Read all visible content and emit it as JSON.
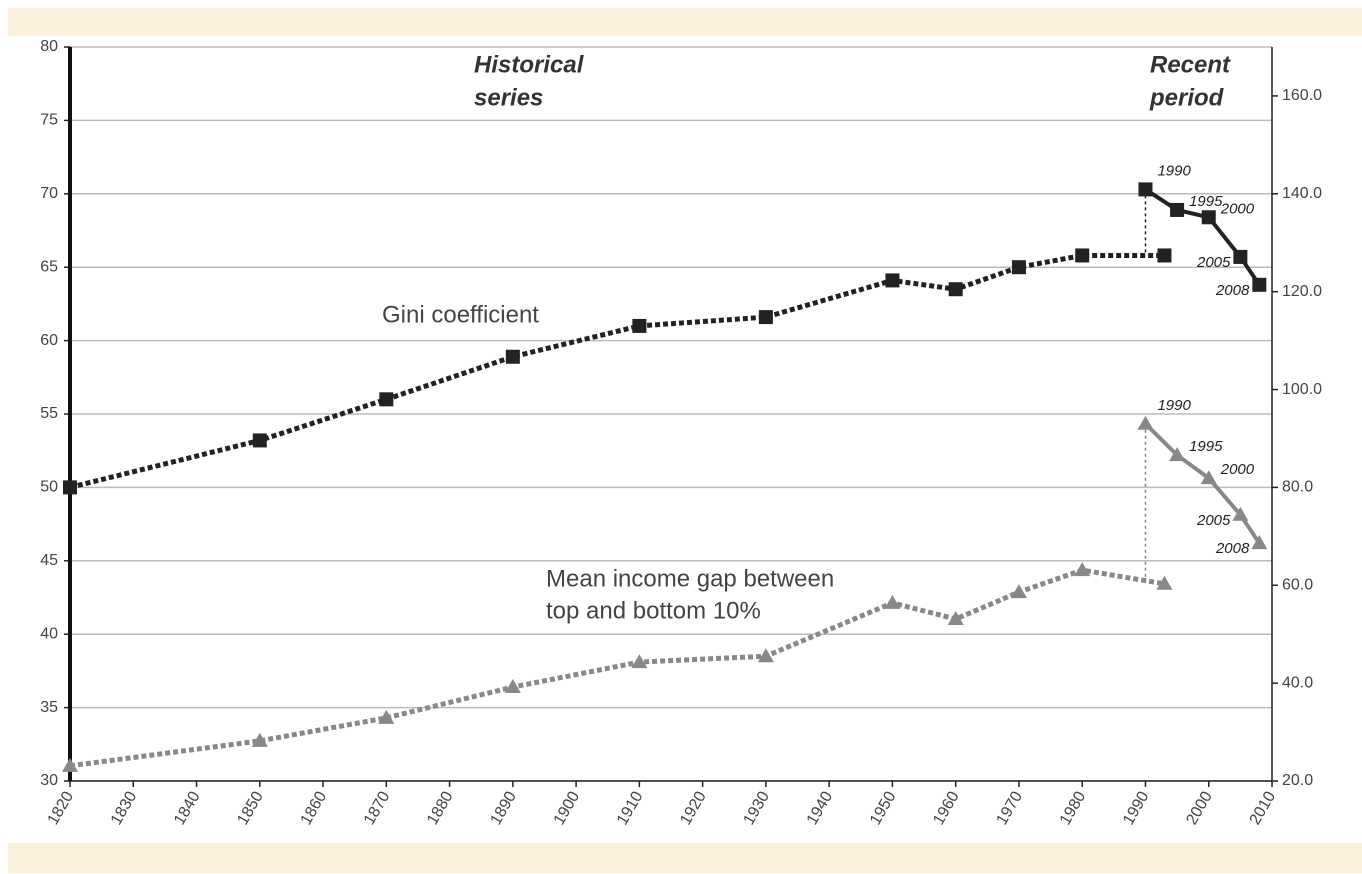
{
  "chart_data": {
    "type": "line",
    "historical_label": [
      "Historical",
      "series"
    ],
    "recent_label": [
      "Recent",
      "period"
    ],
    "xlim": [
      1820,
      2010
    ],
    "xticks": [
      1820,
      1830,
      1840,
      1850,
      1860,
      1870,
      1880,
      1890,
      1900,
      1910,
      1920,
      1930,
      1940,
      1950,
      1960,
      1970,
      1980,
      1990,
      2000,
      2010
    ],
    "ylim": [
      30,
      80
    ],
    "yticks": [
      30,
      35,
      40,
      45,
      50,
      55,
      60,
      65,
      70,
      75,
      80
    ],
    "y2lim": [
      20,
      170
    ],
    "y2ticks": [
      {
        "value": 20,
        "label": "20.0"
      },
      {
        "value": 40,
        "label": "40.0"
      },
      {
        "value": 60,
        "label": "60.0"
      },
      {
        "value": 80,
        "label": "80.0"
      },
      {
        "value": 100,
        "label": "100.0"
      },
      {
        "value": 120,
        "label": "120.0"
      },
      {
        "value": 140,
        "label": "140.0"
      },
      {
        "value": 160,
        "label": "160.0"
      }
    ],
    "grid": true,
    "series": [
      {
        "name": "Gini coefficient",
        "color": "#222222",
        "axis": "y",
        "marker": "square",
        "historical": {
          "x": [
            1820,
            1850,
            1870,
            1890,
            1910,
            1930,
            1950,
            1960,
            1970,
            1980,
            1993
          ],
          "values": [
            50,
            53.2,
            56,
            58.9,
            61,
            61.6,
            64.1,
            63.5,
            65,
            65.8,
            65.8
          ]
        },
        "recent": {
          "x": [
            1990,
            1995,
            2000,
            2005,
            2008
          ],
          "values": [
            70.3,
            68.9,
            68.4,
            65.7,
            63.8
          ]
        }
      },
      {
        "name": [
          "Mean income gap between",
          "top and bottom 10%"
        ],
        "color": "#888888",
        "axis": "y2",
        "marker": "triangle",
        "historical": {
          "x": [
            1820,
            1850,
            1870,
            1890,
            1910,
            1930,
            1950,
            1960,
            1970,
            1980,
            1993
          ],
          "values": [
            23.1,
            28.2,
            32.9,
            39.2,
            44.3,
            45.5,
            56.4,
            53.1,
            58.6,
            63.1,
            60.3
          ]
        },
        "recent": {
          "x": [
            1990,
            1995,
            2000,
            2005,
            2008
          ],
          "values": [
            93,
            86.6,
            81.9,
            74.4,
            68.6
          ]
        }
      }
    ]
  }
}
